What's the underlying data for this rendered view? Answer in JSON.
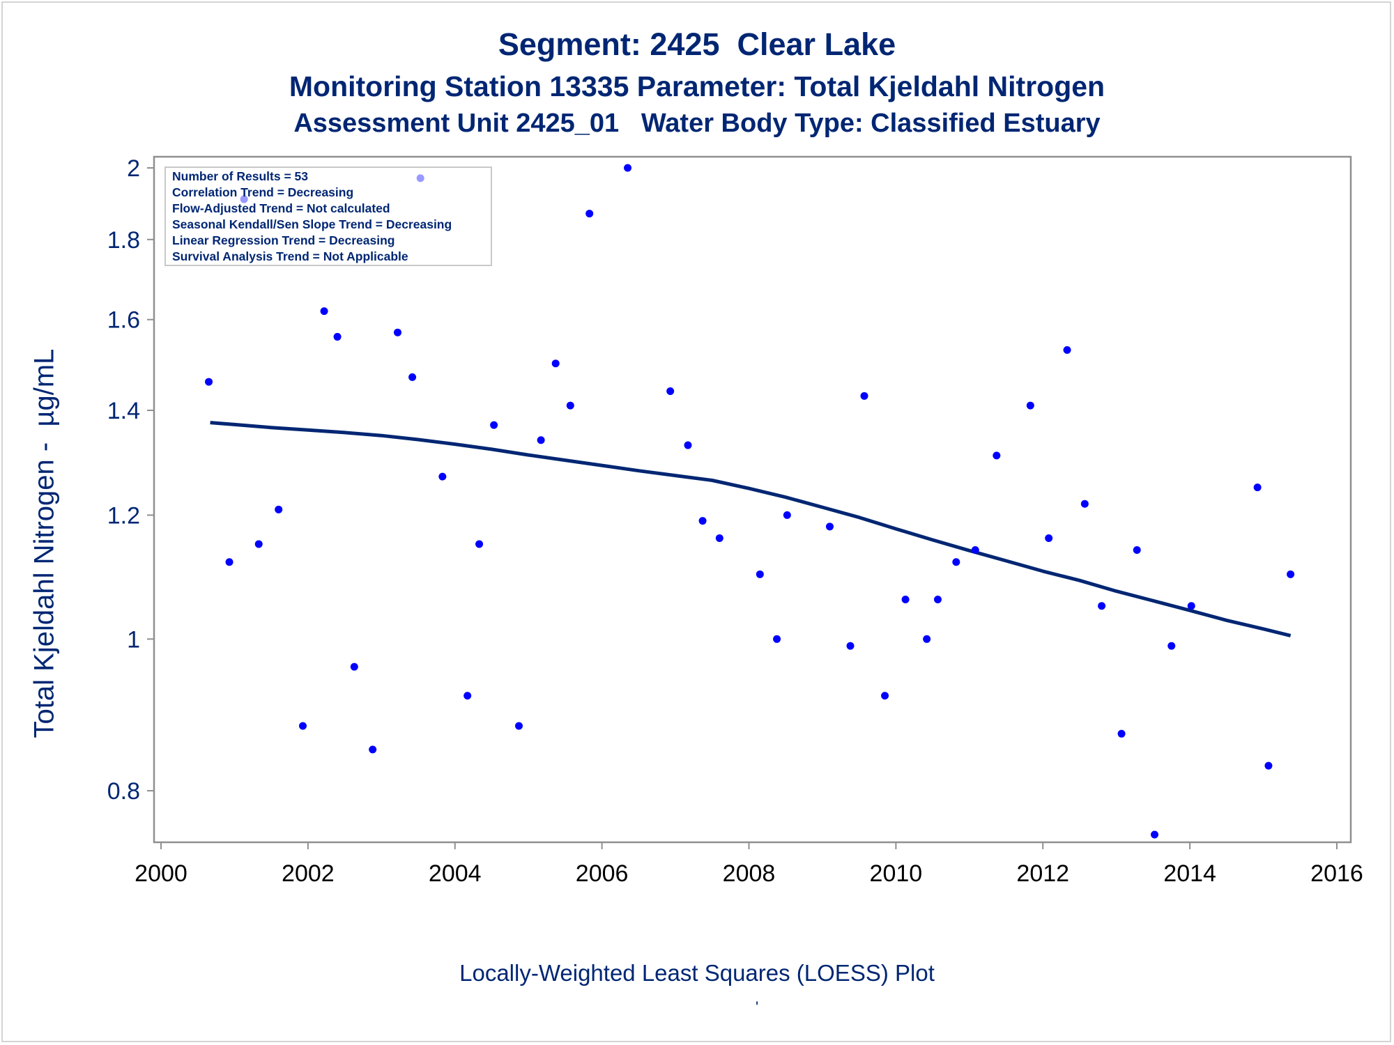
{
  "chart_data": {
    "type": "scatter",
    "title": "Segment: 2425  Clear Lake",
    "subtitle": "Monitoring Station 13335 Parameter: Total Kjeldahl Nitrogen",
    "subtitle2": "Assessment Unit 2425_01   Water Body Type: Classified Estuary",
    "xlabel": "",
    "ylabel": "Total Kjeldahl Nitrogen -  µg/mL",
    "footnote": "Locally-Weighted Least Squares (LOESS) Plot",
    "footnote_mark": "'",
    "y_scale": "log",
    "xlim": [
      2000,
      2016
    ],
    "ylim": [
      0.75,
      2.0
    ],
    "x_ticks": [
      2000,
      2002,
      2004,
      2006,
      2008,
      2010,
      2012,
      2014,
      2016
    ],
    "y_ticks": [
      0.8,
      1,
      1.2,
      1.4,
      1.6,
      1.8,
      2
    ],
    "grid": false,
    "legend_position": "top-left",
    "legend_lines": [
      "Number of Results = 53",
      "Correlation Trend = Decreasing",
      "Flow-Adjusted Trend = Not calculated",
      "Seasonal Kendall/Sen Slope Trend = Decreasing",
      "Linear Regression Trend = Decreasing",
      "Survival Analysis Trend = Not Applicable"
    ],
    "series": [
      {
        "kind": "points",
        "color": "#0000ff",
        "x": [
          2000.65,
          2000.93,
          2001.13,
          2001.33,
          2001.6,
          2001.93,
          2002.22,
          2002.4,
          2002.63,
          2002.88,
          2003.22,
          2003.42,
          2003.53,
          2003.83,
          2004.17,
          2004.33,
          2004.53,
          2004.87,
          2005.17,
          2005.37,
          2005.57,
          2005.83,
          2006.35,
          2006.93,
          2007.17,
          2007.37,
          2007.6,
          2008.15,
          2008.38,
          2008.52,
          2009.1,
          2009.38,
          2009.57,
          2009.85,
          2010.13,
          2010.42,
          2010.57,
          2010.82,
          2011.08,
          2011.37,
          2011.83,
          2012.08,
          2012.33,
          2012.57,
          2012.8,
          2013.07,
          2013.28,
          2013.52,
          2013.75,
          2014.02,
          2014.92,
          2015.07,
          2015.37
        ],
        "y": [
          1.46,
          1.12,
          1.91,
          1.15,
          1.21,
          0.88,
          1.62,
          1.56,
          0.96,
          0.85,
          1.57,
          1.47,
          1.97,
          1.27,
          0.92,
          1.15,
          1.37,
          0.88,
          1.34,
          1.5,
          1.41,
          1.87,
          2.0,
          1.44,
          1.33,
          1.19,
          1.16,
          1.1,
          1.0,
          1.2,
          1.18,
          0.99,
          1.43,
          0.92,
          1.06,
          1.0,
          1.06,
          1.12,
          1.14,
          1.31,
          1.41,
          1.16,
          1.53,
          1.22,
          1.05,
          0.87,
          1.14,
          0.75,
          0.99,
          1.05,
          1.25,
          0.83,
          1.1
        ]
      },
      {
        "kind": "loess",
        "color": "#002673",
        "x": [
          2000.67,
          2001.0,
          2001.5,
          2002.0,
          2002.5,
          2003.0,
          2003.5,
          2004.0,
          2004.5,
          2005.0,
          2005.5,
          2006.0,
          2006.5,
          2007.0,
          2007.5,
          2008.0,
          2008.5,
          2009.0,
          2009.5,
          2010.0,
          2010.5,
          2011.0,
          2011.5,
          2012.0,
          2012.5,
          2013.0,
          2013.5,
          2014.0,
          2014.5,
          2015.0,
          2015.37
        ],
        "y": [
          1.375,
          1.371,
          1.365,
          1.36,
          1.355,
          1.349,
          1.341,
          1.332,
          1.322,
          1.311,
          1.301,
          1.291,
          1.281,
          1.272,
          1.263,
          1.248,
          1.232,
          1.214,
          1.196,
          1.176,
          1.157,
          1.139,
          1.122,
          1.105,
          1.09,
          1.073,
          1.058,
          1.043,
          1.028,
          1.015,
          1.005
        ]
      }
    ]
  }
}
